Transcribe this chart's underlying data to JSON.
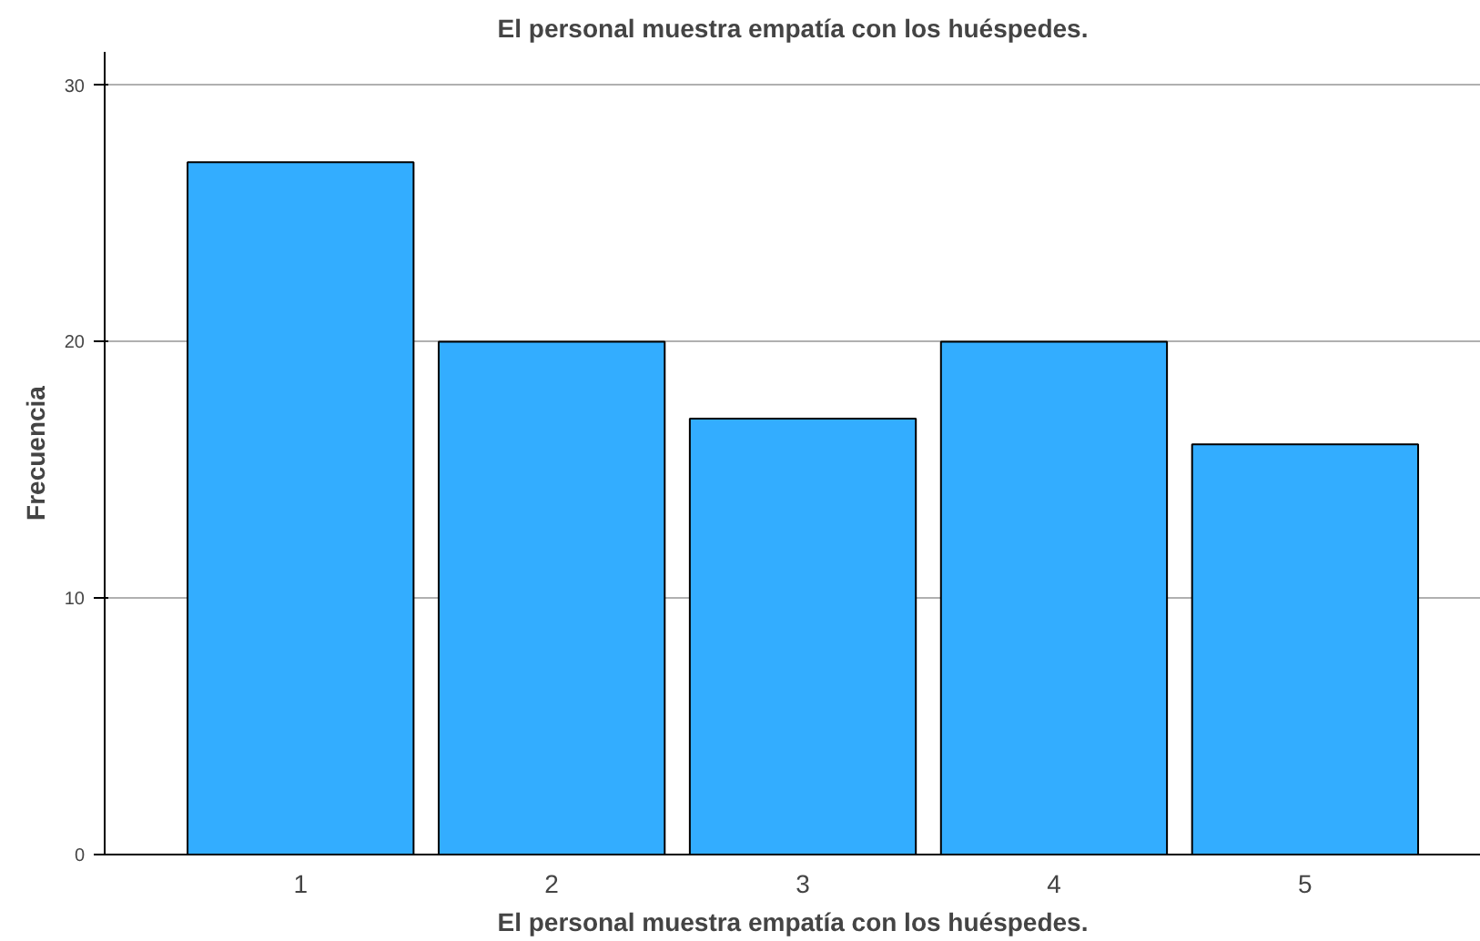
{
  "chart_data": {
    "type": "bar",
    "title": "El personal muestra empatía con los huéspedes.",
    "xlabel": "El personal muestra empatía con los huéspedes.",
    "ylabel": "Frecuencia",
    "categories": [
      "1",
      "2",
      "3",
      "4",
      "5"
    ],
    "values": [
      27,
      20,
      17,
      20,
      16
    ],
    "color": "#33adff",
    "ylim": [
      0,
      31.3
    ],
    "yticks": [
      0,
      10,
      20,
      30
    ],
    "grid": "y"
  }
}
